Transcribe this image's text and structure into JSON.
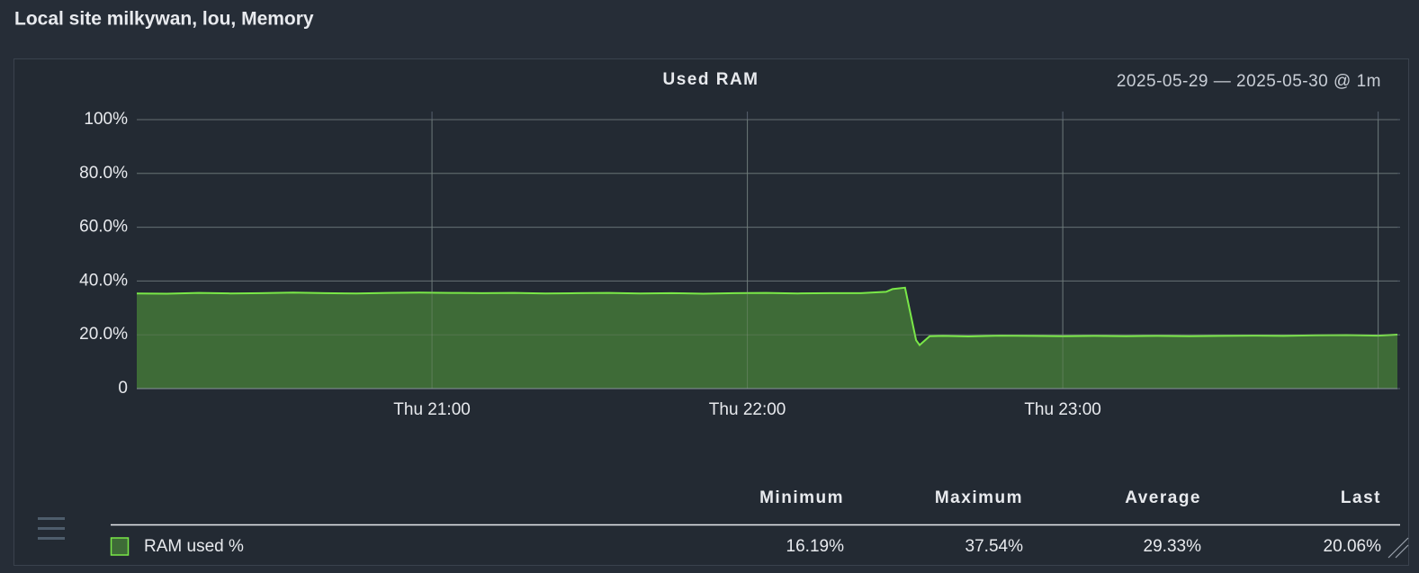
{
  "chart_data": {
    "type": "area",
    "page_title": "Local site milkywan, lou, Memory",
    "title": "Used RAM",
    "time_range": "2025-05-29 — 2025-05-30 @ 1m",
    "xlim": [
      20.064,
      24.061
    ],
    "xticks": [
      {
        "value": 21,
        "label": "Thu 21:00"
      },
      {
        "value": 22,
        "label": "Thu 22:00"
      },
      {
        "value": 23,
        "label": "Thu 23:00"
      },
      {
        "value": 24,
        "label": null
      }
    ],
    "ylim": [
      0,
      100
    ],
    "yticks": [
      0,
      {
        "value": 20,
        "label": "20.0%"
      },
      {
        "value": 40,
        "label": "40.0%"
      },
      {
        "value": 60,
        "label": "60.0%"
      },
      {
        "value": 80,
        "label": "80.0%"
      },
      {
        "value": 100,
        "label": "100%"
      }
    ],
    "grid": true,
    "x": [
      20.064,
      20.16,
      20.26,
      20.36,
      20.46,
      20.56,
      20.66,
      20.76,
      20.86,
      20.96,
      21.06,
      21.16,
      21.26,
      21.36,
      21.46,
      21.56,
      21.66,
      21.76,
      21.86,
      21.96,
      22.06,
      22.16,
      22.26,
      22.36,
      22.44,
      22.46,
      22.5,
      22.535,
      22.546,
      22.578,
      22.62,
      22.7,
      22.8,
      22.9,
      23.0,
      23.1,
      23.2,
      23.3,
      23.4,
      23.5,
      23.6,
      23.7,
      23.8,
      23.9,
      24.0,
      24.061
    ],
    "stats_headers": [
      "Minimum",
      "Maximum",
      "Average",
      "Last"
    ],
    "series": [
      {
        "name": "RAM used %",
        "color": "#7ae848",
        "fill": "#3e6b37",
        "values": [
          35.4,
          35.3,
          35.6,
          35.4,
          35.5,
          35.7,
          35.5,
          35.4,
          35.6,
          35.7,
          35.6,
          35.5,
          35.6,
          35.4,
          35.5,
          35.6,
          35.4,
          35.5,
          35.3,
          35.5,
          35.6,
          35.4,
          35.5,
          35.5,
          36.0,
          37.0,
          37.54,
          18.0,
          16.19,
          19.5,
          19.6,
          19.4,
          19.7,
          19.6,
          19.5,
          19.6,
          19.5,
          19.6,
          19.5,
          19.6,
          19.7,
          19.6,
          19.8,
          19.9,
          19.7,
          20.06
        ],
        "stats": [
          16.19,
          37.54,
          29.33,
          20.06
        ],
        "stat_labels": [
          "16.19%",
          "37.54%",
          "29.33%",
          "20.06%"
        ]
      }
    ]
  }
}
